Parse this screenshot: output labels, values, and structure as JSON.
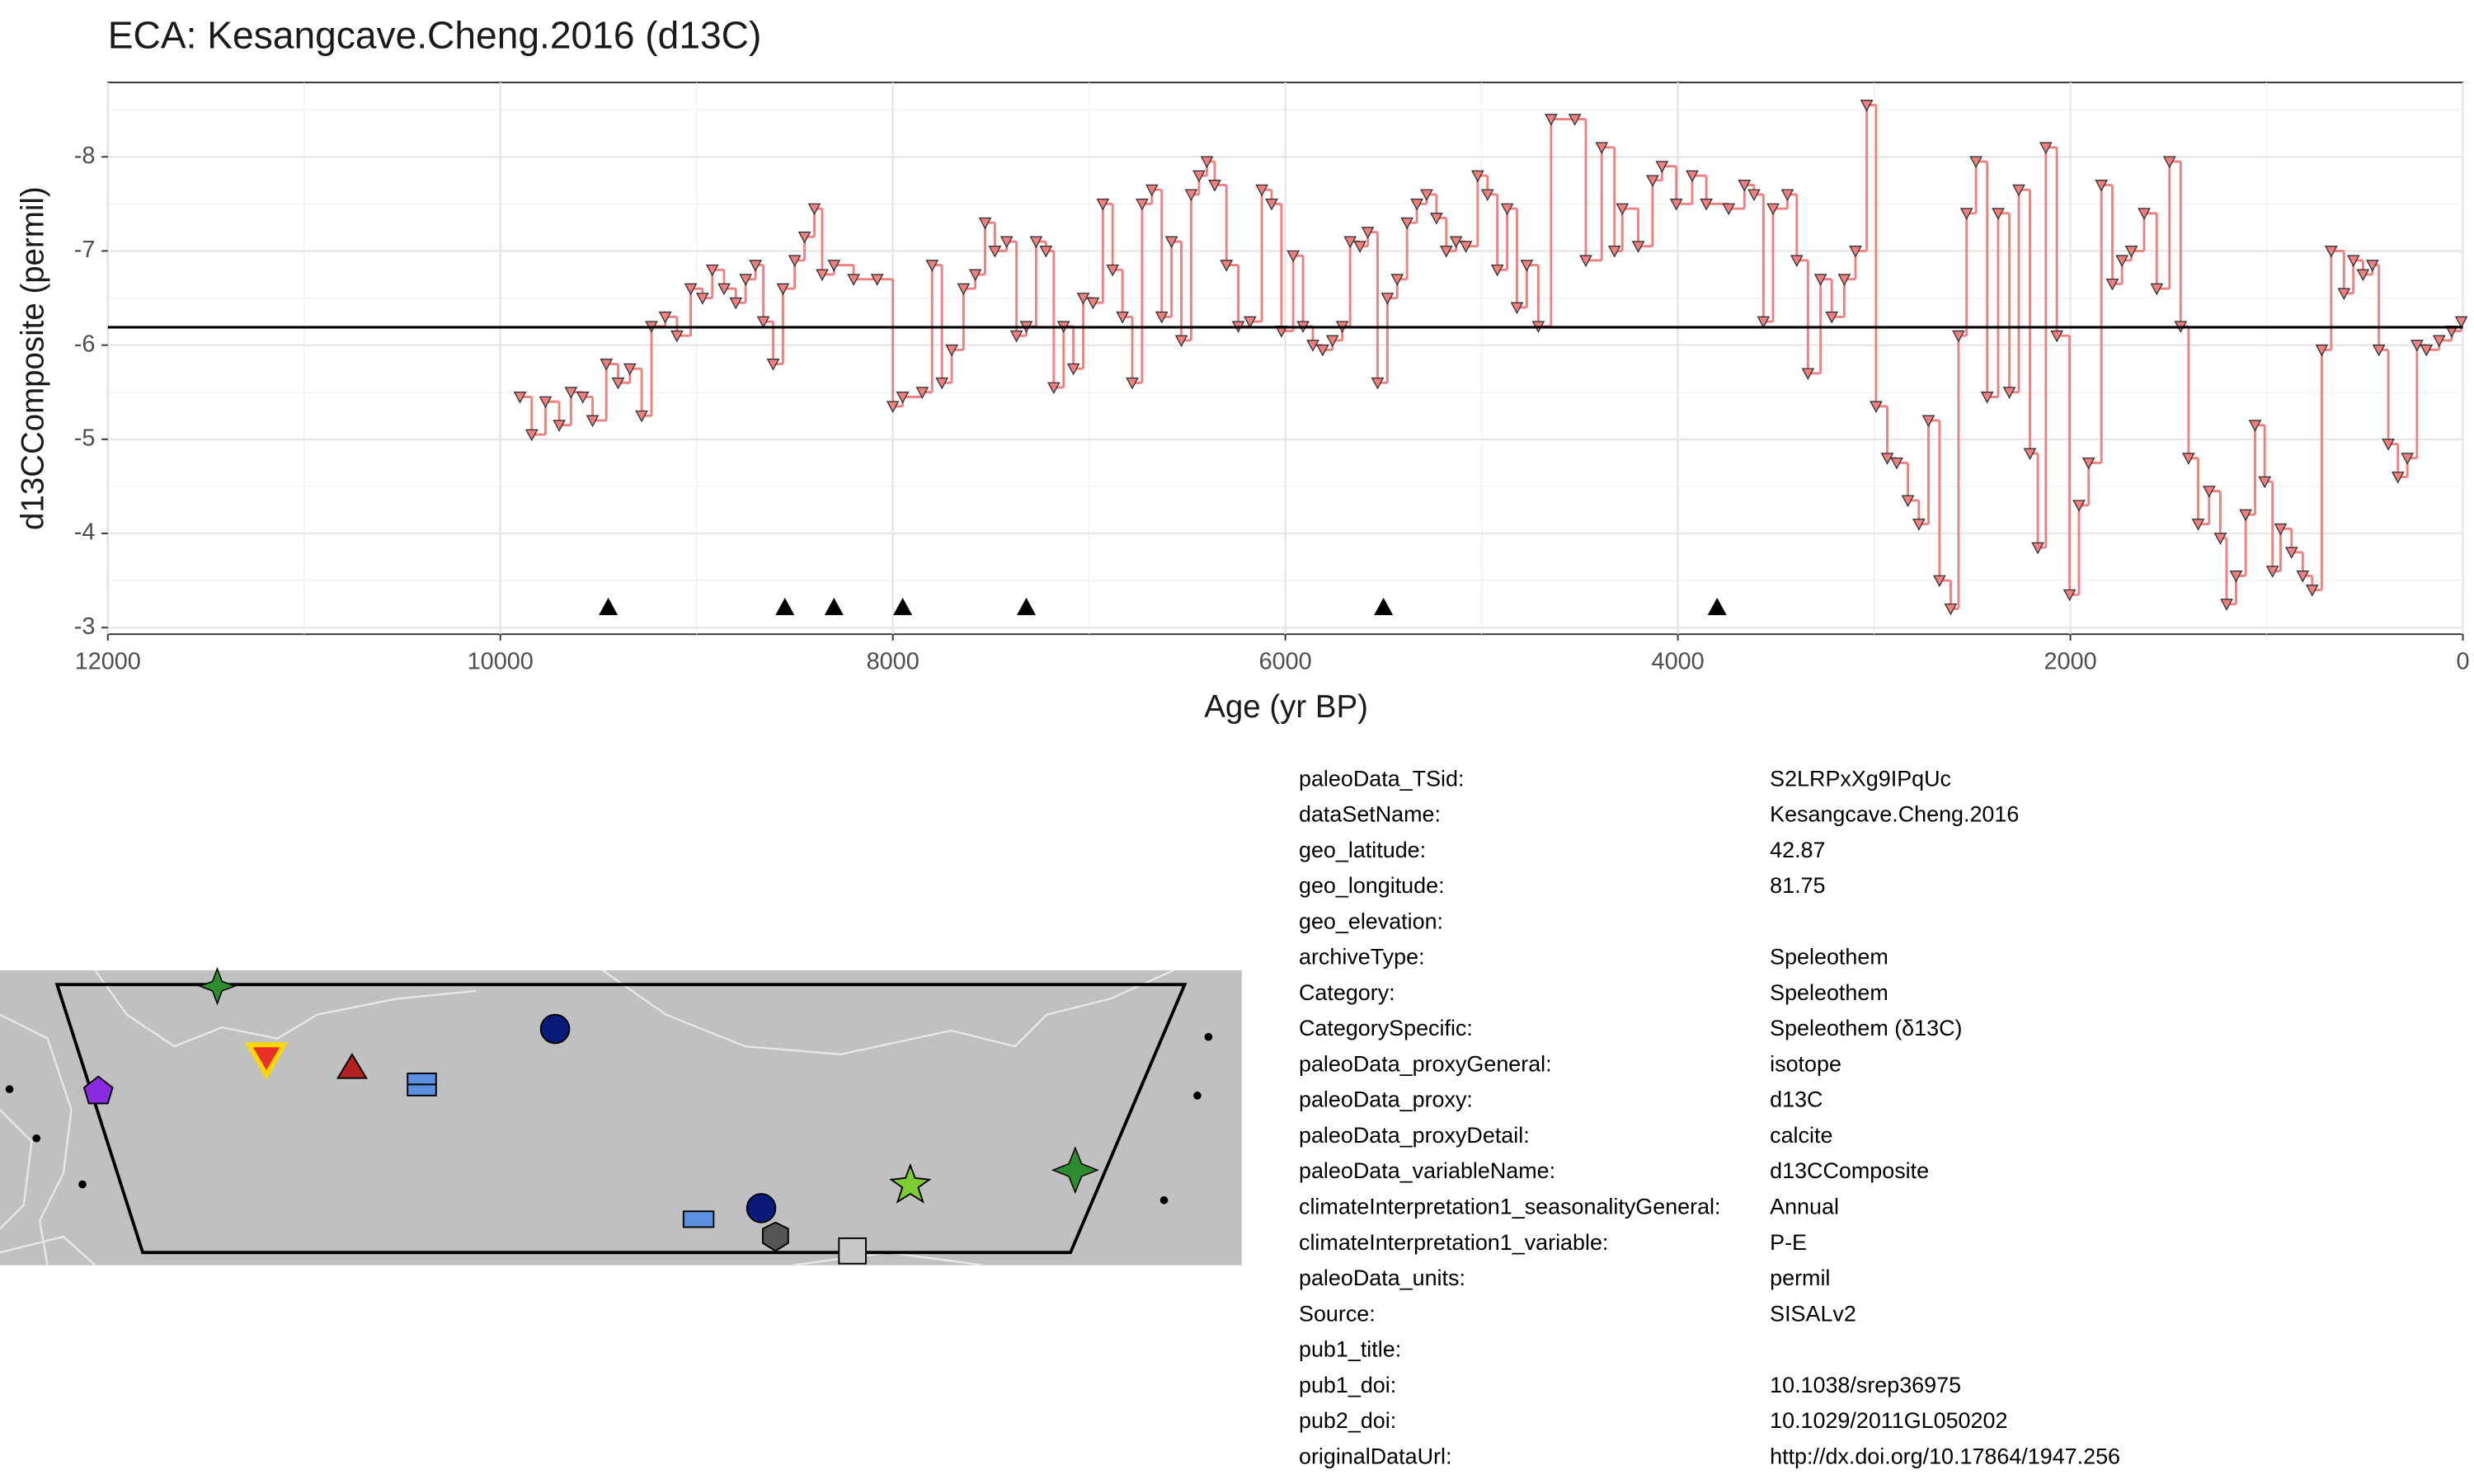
{
  "chart_data": {
    "type": "line",
    "step": true,
    "title": "ECA: Kesangcave.Cheng.2016 (d13C)",
    "xlabel": "Age (yr BP)",
    "ylabel": "d13CComposite (permil)",
    "color": "#f08080",
    "x": [
      9900,
      9840,
      9770,
      9700,
      9640,
      9580,
      9530,
      9460,
      9400,
      9340,
      9280,
      9230,
      9160,
      9100,
      9030,
      8970,
      8920,
      8860,
      8800,
      8750,
      8700,
      8660,
      8610,
      8560,
      8500,
      8450,
      8400,
      8360,
      8300,
      8200,
      8080,
      8000,
      7950,
      7850,
      7800,
      7750,
      7700,
      7640,
      7580,
      7530,
      7480,
      7420,
      7370,
      7320,
      7270,
      7220,
      7180,
      7130,
      7080,
      7030,
      6980,
      6930,
      6880,
      6830,
      6780,
      6730,
      6680,
      6630,
      6580,
      6530,
      6480,
      6440,
      6400,
      6360,
      6300,
      6240,
      6180,
      6120,
      6070,
      6020,
      5960,
      5910,
      5860,
      5810,
      5760,
      5710,
      5670,
      5620,
      5580,
      5530,
      5480,
      5430,
      5380,
      5330,
      5280,
      5230,
      5180,
      5130,
      5080,
      5020,
      4970,
      4920,
      4870,
      4820,
      4770,
      4711,
      4646,
      4525,
      4469,
      4388,
      4323,
      4283,
      4202,
      4129,
      4081,
      4008,
      3927,
      3855,
      3741,
      3661,
      3612,
      3564,
      3515,
      3442,
      3394,
      3337,
      3273,
      3216,
      3152,
      3095,
      3038,
      2990,
      2933,
      2885,
      2828,
      2772,
      2723,
      2667,
      2610,
      2570,
      2529,
      2481,
      2424,
      2368,
      2311,
      2263,
      2206,
      2166,
      2125,
      2069,
      2004,
      1956,
      1907,
      1842,
      1786,
      1737,
      1689,
      1624,
      1560,
      1495,
      1438,
      1398,
      1349,
      1293,
      1236,
      1204,
      1156,
      1107,
      1059,
      1010,
      970,
      929,
      873,
      816,
      768,
      719,
      671,
      606,
      558,
      509,
      461,
      428,
      380,
      331,
      283,
      234,
      186,
      121,
      57,
      8
    ],
    "values": [
      -5.45,
      -5.05,
      -5.4,
      -5.15,
      -5.5,
      -5.45,
      -5.2,
      -5.8,
      -5.6,
      -5.75,
      -5.25,
      -6.2,
      -6.3,
      -6.1,
      -6.6,
      -6.5,
      -6.8,
      -6.6,
      -6.45,
      -6.7,
      -6.85,
      -6.25,
      -5.8,
      -6.6,
      -6.9,
      -7.15,
      -7.45,
      -6.75,
      -6.85,
      -6.7,
      -6.7,
      -5.35,
      -5.45,
      -5.5,
      -6.85,
      -5.6,
      -5.95,
      -6.6,
      -6.75,
      -7.3,
      -7.0,
      -7.1,
      -6.1,
      -6.2,
      -7.1,
      -7.0,
      -5.55,
      -6.2,
      -5.75,
      -6.5,
      -6.45,
      -7.5,
      -6.8,
      -6.3,
      -5.6,
      -7.5,
      -7.65,
      -6.3,
      -7.1,
      -6.05,
      -7.6,
      -7.8,
      -7.95,
      -7.7,
      -6.85,
      -6.2,
      -6.25,
      -7.65,
      -7.5,
      -6.15,
      -6.95,
      -6.2,
      -6.0,
      -5.95,
      -6.05,
      -6.2,
      -7.1,
      -7.05,
      -7.2,
      -5.6,
      -6.5,
      -6.7,
      -7.3,
      -7.5,
      -7.6,
      -7.35,
      -7.0,
      -7.1,
      -7.05,
      -7.8,
      -7.6,
      -6.8,
      -7.45,
      -6.4,
      -6.85,
      -6.2,
      -8.4,
      -8.4,
      -6.9,
      -8.1,
      -7.0,
      -7.45,
      -7.05,
      -7.75,
      -7.9,
      -7.5,
      -7.8,
      -7.5,
      -7.45,
      -7.7,
      -7.6,
      -6.25,
      -7.45,
      -7.6,
      -6.9,
      -5.7,
      -6.7,
      -6.3,
      -6.7,
      -7.0,
      -8.55,
      -5.35,
      -4.8,
      -4.75,
      -4.35,
      -4.1,
      -5.2,
      -3.5,
      -3.2,
      -6.1,
      -7.4,
      -7.95,
      -5.45,
      -7.4,
      -5.5,
      -7.65,
      -4.85,
      -3.85,
      -8.1,
      -6.1,
      -3.35,
      -4.3,
      -4.75,
      -7.7,
      -6.65,
      -6.9,
      -7.0,
      -7.4,
      -6.6,
      -7.95,
      -6.2,
      -4.8,
      -4.1,
      -4.45,
      -3.95,
      -3.25,
      -3.55,
      -4.2,
      -5.15,
      -4.55,
      -3.6,
      -4.05,
      -3.8,
      -3.55,
      -3.4,
      -5.95,
      -7.0,
      -6.55,
      -6.9,
      -6.75,
      -6.85,
      -5.95,
      -4.95,
      -4.6,
      -4.8,
      -6.0,
      -5.95,
      -6.05,
      -6.15,
      -6.25
    ],
    "hline": -6.19,
    "age_markers": [
      9450,
      8550,
      8300,
      7950,
      7320,
      5500,
      3800
    ],
    "xlim": [
      12000,
      0
    ],
    "xticks": [
      12000,
      10000,
      8000,
      6000,
      4000,
      2000,
      0
    ],
    "x_minor_ticks": [
      11000,
      9000,
      7000,
      5000,
      3000,
      1000
    ],
    "ylim": [
      -2.93,
      -8.79
    ],
    "yticks": [
      -8,
      -7,
      -6,
      -5,
      -4,
      -3
    ],
    "y_minor_ticks": [
      -8.5,
      -7.5,
      -6.5,
      -5.5,
      -4.5,
      -3.5
    ],
    "grid": true
  },
  "metadata": [
    {
      "key": "paleoData_TSid:",
      "value": "S2LRPxXg9IPqUc"
    },
    {
      "key": "dataSetName:",
      "value": "Kesangcave.Cheng.2016"
    },
    {
      "key": "geo_latitude:",
      "value": "42.87"
    },
    {
      "key": "geo_longitude:",
      "value": "81.75"
    },
    {
      "key": "geo_elevation:",
      "value": null
    },
    {
      "key": "archiveType:",
      "value": "Speleothem"
    },
    {
      "key": "Category:",
      "value": "Speleothem"
    },
    {
      "key": "CategorySpecific:",
      "value": "Speleothem (δ13C)"
    },
    {
      "key": "paleoData_proxyGeneral:",
      "value": "isotope"
    },
    {
      "key": "paleoData_proxy:",
      "value": "d13C"
    },
    {
      "key": "paleoData_proxyDetail:",
      "value": "calcite"
    },
    {
      "key": "paleoData_variableName:",
      "value": "d13CComposite"
    },
    {
      "key": "climateInterpretation1_seasonalityGeneral:",
      "value": "Annual"
    },
    {
      "key": "climateInterpretation1_variable:",
      "value": "P-E"
    },
    {
      "key": "paleoData_units:",
      "value": "permil"
    },
    {
      "key": "Source:",
      "value": "SISALv2"
    },
    {
      "key": "pub1_title:",
      "value": null
    },
    {
      "key": "pub1_doi:",
      "value": "10.1038/srep36975"
    },
    {
      "key": "pub2_doi:",
      "value": "10.1029/2011GL050202"
    },
    {
      "key": "originalDataUrl:",
      "value": "http://dx.doi.org/10.17864/1947.256"
    }
  ]
}
